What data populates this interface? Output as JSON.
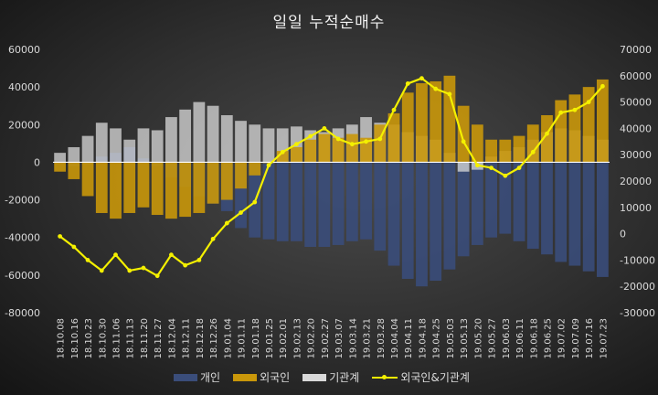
{
  "chart_data": {
    "type": "bar",
    "title": "일일 누적순매수",
    "x_dates": [
      "18.10.08",
      "18.10.16",
      "18.10.23",
      "18.10.30",
      "18.11.06",
      "18.11.13",
      "18.11.20",
      "18.11.27",
      "18.12.04",
      "18.12.11",
      "18.12.18",
      "18.12.26",
      "19.01.04",
      "19.01.11",
      "19.01.18",
      "19.01.25",
      "19.02.01",
      "19.02.13",
      "19.02.20",
      "19.02.27",
      "19.03.07",
      "19.03.14",
      "19.03.21",
      "19.03.28",
      "19.04.04",
      "19.04.11",
      "19.04.18",
      "19.04.25",
      "19.05.03",
      "19.05.13",
      "19.05.20",
      "19.05.27",
      "19.06.03",
      "19.06.11",
      "19.06.18",
      "19.06.25",
      "19.07.02",
      "19.07.09",
      "19.07.16",
      "19.07.23"
    ],
    "y_left_ticks": [
      "60000",
      "40000",
      "20000",
      "0",
      "-20000",
      "-40000",
      "-60000",
      "-80000"
    ],
    "y_right_ticks": [
      "70000",
      "60000",
      "50000",
      "40000",
      "30000",
      "20000",
      "10000",
      "0",
      "-10000",
      "-20000",
      "-30000"
    ],
    "ylim_left": [
      -80000,
      60000
    ],
    "ylim_right": [
      -30000,
      70000
    ],
    "legend_position": "bottom",
    "grid": false,
    "series": [
      {
        "name": "개인",
        "kind": "bar",
        "axis": "left",
        "color": "#3a4d7a",
        "values": [
          -500,
          -2000,
          -1000,
          3000,
          5000,
          8000,
          2000,
          -2000,
          -8000,
          -13000,
          -18000,
          -22000,
          -26000,
          -35000,
          -40000,
          -41000,
          -42000,
          -42000,
          -45000,
          -45000,
          -44000,
          -42000,
          -41000,
          -47000,
          -55000,
          -62000,
          -66000,
          -63000,
          -57000,
          -50000,
          -44000,
          -40000,
          -38000,
          -42000,
          -46000,
          -49000,
          -53000,
          -55000,
          -58000,
          -61000
        ]
      },
      {
        "name": "외국인",
        "kind": "bar",
        "axis": "left",
        "color": "#c9970a",
        "values": [
          -5000,
          -9000,
          -18000,
          -27000,
          -30000,
          -27000,
          -24000,
          -28000,
          -30000,
          -29000,
          -27000,
          -22000,
          -20000,
          -14000,
          -7000,
          0,
          6000,
          8000,
          12000,
          15000,
          13000,
          15000,
          13000,
          20000,
          26000,
          37000,
          42000,
          43000,
          46000,
          30000,
          20000,
          12000,
          12000,
          14000,
          20000,
          25000,
          33000,
          36000,
          40000,
          44000
        ]
      },
      {
        "name": "기관계",
        "kind": "bar",
        "axis": "left",
        "color": "#d9d9d9",
        "values": [
          5000,
          8000,
          14000,
          21000,
          18000,
          12000,
          18000,
          17000,
          24000,
          28000,
          32000,
          30000,
          25000,
          22000,
          20000,
          18000,
          18000,
          19000,
          17000,
          16000,
          18000,
          20000,
          24000,
          21000,
          20000,
          16000,
          14000,
          12000,
          5000,
          -5000,
          -4000,
          3000,
          6000,
          8000,
          12000,
          16000,
          18000,
          17000,
          14000,
          12000
        ]
      },
      {
        "name": "외국인&기관계",
        "kind": "line",
        "axis": "right",
        "color": "#f4f000",
        "values": [
          -1000,
          -5000,
          -10000,
          -14000,
          -8000,
          -14000,
          -13000,
          -16000,
          -8000,
          -12000,
          -10000,
          -2000,
          4000,
          8000,
          12000,
          26000,
          31000,
          34000,
          37000,
          40000,
          36000,
          34000,
          35000,
          36000,
          47000,
          57000,
          59000,
          55000,
          53000,
          35000,
          26000,
          25000,
          22000,
          25000,
          31000,
          38000,
          46000,
          47000,
          50000,
          56000
        ]
      }
    ]
  }
}
